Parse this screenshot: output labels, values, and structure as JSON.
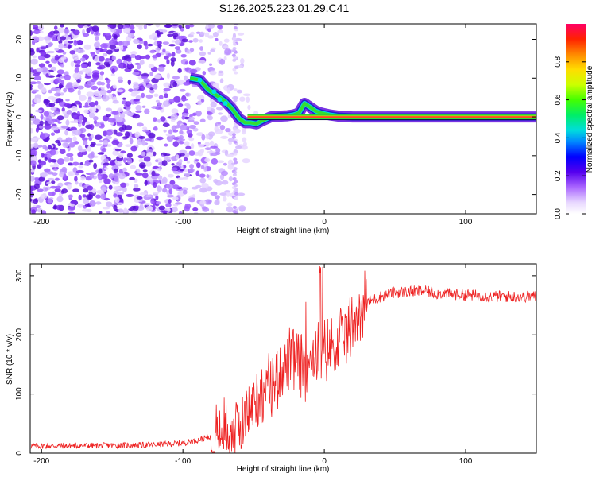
{
  "title": "S126.2025.223.01.29.C41",
  "colors": {
    "snr_line": "#ee2222",
    "axis": "#000000",
    "carrier_core": "#ff2a2a",
    "carrier_mid": "#33dd33",
    "carrier_edge": "#2222cc"
  },
  "chart_data": [
    {
      "type": "heatmap",
      "title": "S126.2025.223.01.29.C41",
      "xlabel": "Height of straight line (km)",
      "ylabel": "Frequency (Hz)",
      "xlim": [
        -208,
        150
      ],
      "ylim": [
        -25,
        24
      ],
      "xticks": [
        -200,
        -100,
        0,
        100
      ],
      "yticks": [
        -20,
        -10,
        0,
        10,
        20
      ],
      "carrier_track": {
        "x": [
          -95,
          -88,
          -82,
          -76,
          -70,
          -65,
          -60,
          -56,
          -52,
          -48,
          -44,
          -38,
          -32,
          -26,
          -22,
          -18,
          -14,
          -10,
          -6,
          -2,
          4,
          10,
          20,
          30,
          150
        ],
        "y": [
          10,
          9.5,
          7,
          5.5,
          4,
          2,
          -0.5,
          -1.5,
          -1.5,
          -1.8,
          -1,
          0,
          0.2,
          0.3,
          0.5,
          1,
          3.5,
          2.5,
          1.5,
          1,
          0.5,
          0.2,
          0,
          0,
          0
        ]
      },
      "colorbar": {
        "label": "Normalized spectral amplitude",
        "range": [
          0.0,
          1.0
        ],
        "ticks": [
          "0.0",
          "0.2",
          "0.4",
          "0.6",
          "0.8"
        ],
        "tick_values": [
          0.0,
          0.2,
          0.4,
          0.6,
          0.8
        ]
      }
    },
    {
      "type": "line",
      "xlabel": "Height of straight line (km)",
      "ylabel": "SNR (10 * v/v)",
      "xlim": [
        -208,
        150
      ],
      "ylim": [
        0,
        320
      ],
      "xticks": [
        -200,
        -100,
        0,
        100
      ],
      "yticks": [
        0,
        100,
        200,
        300
      ],
      "series": [
        {
          "name": "SNR",
          "x": [
            -208,
            -150,
            -120,
            -100,
            -90,
            -80,
            -75,
            -70,
            -65,
            -60,
            -55,
            -50,
            -45,
            -40,
            -35,
            -30,
            -25,
            -20,
            -15,
            -10,
            -5,
            0,
            5,
            10,
            15,
            20,
            25,
            30,
            40,
            50,
            60,
            70,
            80,
            100,
            120,
            150
          ],
          "y": [
            12,
            13,
            14,
            17,
            22,
            28,
            34,
            38,
            42,
            45,
            60,
            85,
            100,
            110,
            125,
            140,
            155,
            155,
            140,
            160,
            175,
            170,
            180,
            185,
            200,
            220,
            240,
            255,
            265,
            272,
            273,
            274,
            270,
            268,
            265,
            265
          ]
        }
      ]
    }
  ]
}
